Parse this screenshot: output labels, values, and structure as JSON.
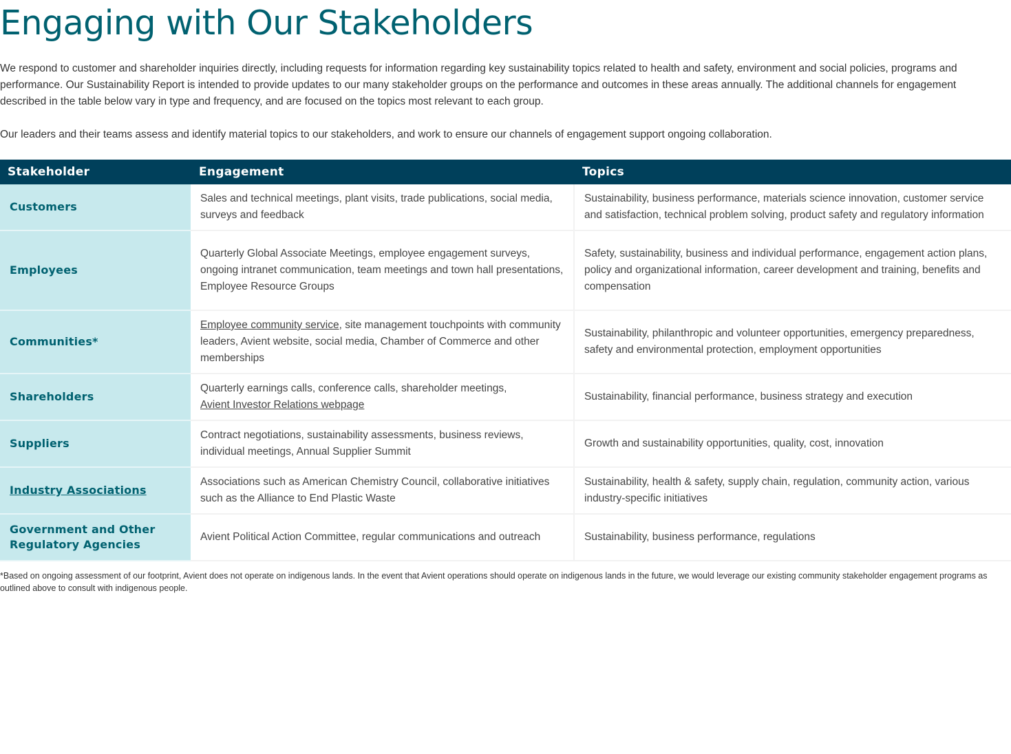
{
  "title": "Engaging with Our Stakeholders",
  "intro_1": "We respond to customer and shareholder inquiries directly, including requests for information regarding key sustainability topics related to health and safety, environment and social policies, programs and performance. Our Sustainability Report is intended to provide updates to our many stakeholder groups on the performance and outcomes in these areas annually. The additional channels for engagement described in the table below vary in type and frequency, and are focused on the topics most relevant to each group.",
  "intro_2": "Our leaders and their teams assess and identify material topics to our stakeholders, and work to ensure our channels of engagement support ongoing collaboration.",
  "table": {
    "headers": [
      "Stakeholder",
      "Engagement",
      "Topics"
    ],
    "rows": [
      {
        "stakeholder": "Customers",
        "eng_link": "",
        "engagement": "Sales and technical meetings, plant visits, trade publications, social media, surveys and feedback",
        "eng_link_after": "",
        "topics": "Sustainability, business performance, materials science innovation, customer service and satisfaction, technical problem solving, product safety and regulatory information"
      },
      {
        "stakeholder": "Employees",
        "eng_link": "",
        "engagement": "Quarterly Global Associate Meetings, employee engagement surveys, ongoing intranet communication, team meetings and town hall presentations, Employee Resource Groups",
        "eng_link_after": "",
        "topics": "Safety, sustainability, business and individual performance, engagement action plans, policy and organizational information, career development and training, benefits and compensation"
      },
      {
        "stakeholder": "Communities*",
        "eng_link": "Employee community service",
        "engagement": ", site management touchpoints with community leaders, Avient website, social media, Chamber of Commerce and other memberships",
        "eng_link_after": "",
        "topics": "Sustainability, philanthropic and volunteer opportunities, emergency preparedness, safety and environmental protection, employment opportunities"
      },
      {
        "stakeholder": "Shareholders",
        "eng_link": "",
        "engagement": "Quarterly earnings calls, conference calls, shareholder meetings, ",
        "eng_link_after": "Avient Investor Relations webpage",
        "topics": "Sustainability, financial performance, business strategy and execution"
      },
      {
        "stakeholder": "Suppliers",
        "eng_link": "",
        "engagement": "Contract negotiations, sustainability assessments, business reviews, individual meetings, Annual Supplier Summit",
        "eng_link_after": "",
        "topics": "Growth and sustainability opportunities, quality, cost, innovation"
      },
      {
        "stakeholder": "Industry Associations",
        "stakeholder_link": true,
        "eng_link": "",
        "engagement": "Associations such as American Chemistry Council, collaborative initiatives such as the Alliance to End Plastic Waste",
        "eng_link_after": "",
        "topics": "Sustainability, health & safety, supply chain, regulation, community action, various industry-specific initiatives"
      },
      {
        "stakeholder": "Government and Other Regulatory  Agencies",
        "eng_link": "",
        "engagement": "Avient Political Action Committee, regular communications and outreach",
        "eng_link_after": "",
        "topics": "Sustainability, business performance, regulations"
      }
    ]
  },
  "footnote": "*Based on ongoing assessment of our footprint, Avient does not operate on indigenous lands. In the event that Avient operations should operate on indigenous lands in the future, we would leverage our existing community stakeholder engagement programs as outlined above to consult with indigenous people.",
  "colors": {
    "title": "#006170",
    "header_bg": "#00405b",
    "stakeholder_bg": "#c7e9ed"
  }
}
